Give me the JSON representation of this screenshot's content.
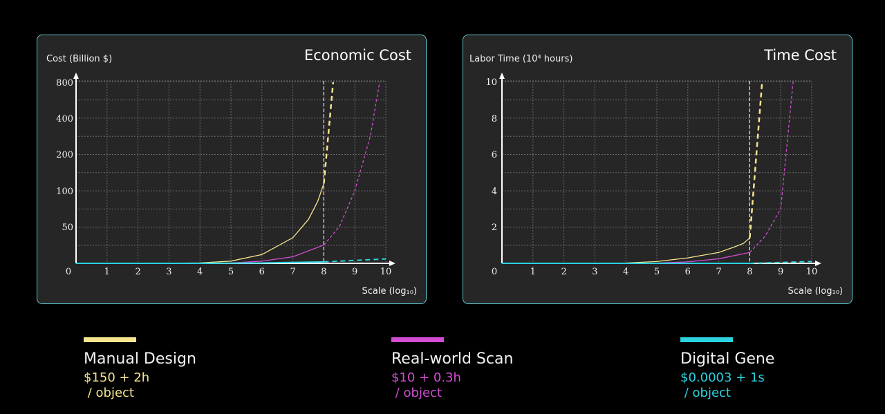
{
  "charts": [
    {
      "title": "Economic Cost",
      "ylabel": "Cost (Billion $)",
      "xlabel_html": "Scale (log₁₀)",
      "x_ticks": [
        "0",
        "1",
        "2",
        "3",
        "4",
        "5",
        "6",
        "7",
        "8",
        "9",
        "10"
      ],
      "y_ticks": [
        "50",
        "100",
        "200",
        "400",
        "800"
      ]
    },
    {
      "title": "Time Cost",
      "ylabel": "Labor Time (10⁴ hours)",
      "xlabel_html": "Scale (log₁₀)",
      "x_ticks": [
        "0",
        "1",
        "2",
        "3",
        "4",
        "5",
        "6",
        "7",
        "8",
        "9",
        "10"
      ],
      "y_ticks": [
        "2",
        "4",
        "6",
        "8",
        "10"
      ]
    }
  ],
  "chart_data": [
    {
      "type": "line",
      "title": "Economic Cost",
      "xlabel": "Scale (log10)",
      "ylabel": "Cost (Billion $)",
      "xlim": [
        0,
        10
      ],
      "y_ticks": [
        50,
        100,
        200,
        400,
        800
      ],
      "grid": true,
      "reference_line_x": 8,
      "series": [
        {
          "name": "Manual Design",
          "color": "#f6e58d",
          "x": [
            0,
            1,
            2,
            3,
            4,
            5,
            6,
            7,
            7.5,
            7.8,
            8,
            8.3
          ],
          "y": [
            0,
            0,
            0,
            0.1,
            0.6,
            3,
            12,
            35,
            60,
            85,
            120,
            800
          ]
        },
        {
          "name": "Real-world Scan",
          "color": "#d24dd3",
          "x": [
            0,
            1,
            2,
            3,
            4,
            5,
            6,
            7,
            8,
            8.5,
            9,
            9.5,
            9.8
          ],
          "y": [
            0,
            0,
            0,
            0,
            0.1,
            0.5,
            3,
            9,
            25,
            50,
            100,
            300,
            800
          ]
        },
        {
          "name": "Digital Gene",
          "color": "#2bd3e0",
          "x": [
            0,
            2,
            4,
            6,
            8,
            9,
            10
          ],
          "y": [
            0,
            0,
            0,
            0.5,
            2,
            4,
            6
          ]
        }
      ]
    },
    {
      "type": "line",
      "title": "Time Cost",
      "xlabel": "Scale (log10)",
      "ylabel": "Labor Time (10^4 hours)",
      "xlim": [
        0,
        10
      ],
      "y_ticks": [
        2,
        4,
        6,
        8,
        10
      ],
      "grid": true,
      "reference_line_x": 8,
      "series": [
        {
          "name": "Manual Design",
          "color": "#f6e58d",
          "x": [
            0,
            1,
            2,
            3,
            4,
            5,
            6,
            7,
            7.5,
            7.8,
            8,
            8.4
          ],
          "y": [
            0,
            0,
            0,
            0,
            0.02,
            0.1,
            0.3,
            0.6,
            0.9,
            1.1,
            1.4,
            10
          ]
        },
        {
          "name": "Real-world Scan",
          "color": "#d24dd3",
          "x": [
            0,
            1,
            2,
            3,
            4,
            5,
            6,
            7,
            8,
            8.5,
            9,
            9.4
          ],
          "y": [
            0,
            0,
            0,
            0,
            0,
            0.02,
            0.08,
            0.25,
            0.6,
            1.5,
            3,
            10
          ]
        },
        {
          "name": "Digital Gene",
          "color": "#2bd3e0",
          "x": [
            0,
            2,
            4,
            6,
            8,
            9,
            10
          ],
          "y": [
            0,
            0,
            0,
            0,
            0,
            0.05,
            0.1
          ]
        }
      ]
    }
  ],
  "legend": [
    {
      "name": "Manual Design",
      "cost": "$150 + 2h",
      "unit": " / object",
      "color": "#f6e58d"
    },
    {
      "name": "Real-world Scan",
      "cost": "$10 + 0.3h",
      "unit": " / object",
      "color": "#d24dd3"
    },
    {
      "name": "Digital Gene",
      "cost": "$0.0003 + 1s",
      "unit": " / object",
      "color": "#2bd3e0"
    }
  ]
}
